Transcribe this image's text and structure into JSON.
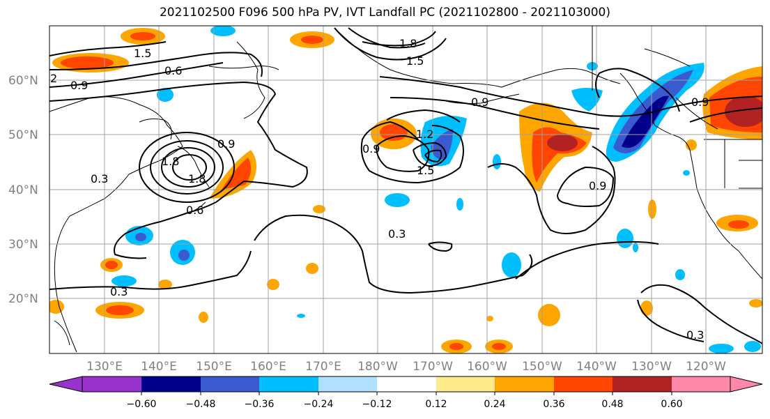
{
  "title": "2021102500 F096 500 hPa PV, IVT Landfall PC (2021102800 - 2021103000)",
  "lat_labels": [
    "60°N",
    "50°N",
    "40°N",
    "30°N",
    "20°N"
  ],
  "lon_labels": [
    "130°E",
    "140°E",
    "150°E",
    "160°E",
    "170°E",
    "180°W",
    "170°W",
    "160°W",
    "150°W",
    "140°W",
    "130°W",
    "120°W"
  ],
  "contour_labels": [
    "1.5",
    "0.6",
    "0.9",
    "1.8",
    "1.5",
    "0.9",
    "0.3",
    "0.9",
    "1.8",
    "1.2",
    "1.5",
    "0.9",
    "0.3",
    "0.3",
    "0.9",
    "0.9",
    "0.3",
    "1.8",
    "0.6",
    "2"
  ],
  "colorbar": {
    "ticks": [
      "−0.60",
      "−0.48",
      "−0.36",
      "−0.24",
      "−0.12",
      "0.12",
      "0.24",
      "0.36",
      "0.48",
      "0.60"
    ],
    "colors": [
      "#9932cc",
      "#00008b",
      "#3a5bd0",
      "#00bfff",
      "#b0e0ff",
      "#ffffff",
      "#ffeb8a",
      "#ffa500",
      "#ff4500",
      "#b22222",
      "#ff88aa"
    ]
  }
}
